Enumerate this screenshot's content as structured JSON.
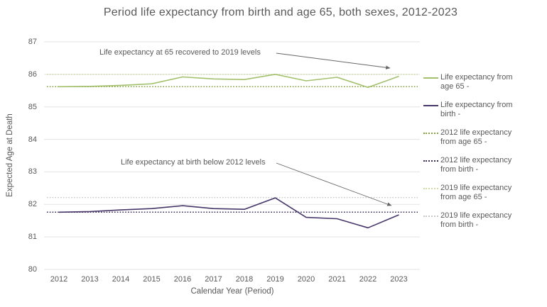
{
  "title": "Period life expectancy from birth and age 65, both sexes, 2012-2023",
  "colors": {
    "text": "#595959",
    "grid": "#e3e3e3",
    "arrow": "#666666",
    "background": "#ffffff"
  },
  "chart_data": {
    "type": "line",
    "title": "Period life expectancy from birth and age 65, both sexes, 2012-2023",
    "xlabel": "Calendar Year (Period)",
    "ylabel": "Expected Age at Death",
    "ylim": [
      80,
      87
    ],
    "yticks": [
      87,
      86,
      85,
      84,
      83,
      82,
      81,
      80
    ],
    "grid": "horizontal",
    "legend_position": "right",
    "categories": [
      "2012",
      "2013",
      "2014",
      "2015",
      "2016",
      "2017",
      "2018",
      "2019",
      "2020",
      "2021",
      "2022",
      "2023"
    ],
    "series": [
      {
        "id": "le-age65",
        "name": "Life expectancy from age 65 -",
        "label_lines": [
          "Life expectancy from",
          "age 65 -"
        ],
        "kind": "line",
        "style": "solid",
        "color": "#a3c06c",
        "values": [
          85.62,
          85.63,
          85.66,
          85.71,
          85.92,
          85.86,
          85.84,
          86.0,
          85.8,
          85.91,
          85.6,
          85.94
        ]
      },
      {
        "id": "le-birth",
        "name": "Life expectancy from birth -",
        "label_lines": [
          "Life expectancy from",
          "birth -"
        ],
        "kind": "line",
        "style": "solid",
        "color": "#473669",
        "values": [
          81.76,
          81.78,
          81.83,
          81.87,
          81.96,
          81.87,
          81.85,
          82.2,
          81.6,
          81.56,
          81.28,
          81.68
        ]
      },
      {
        "id": "ref-2012-age65",
        "name": "2012 life expectancy from age 65 -",
        "label_lines": [
          "2012 life expectancy",
          "from age 65 -"
        ],
        "kind": "refline",
        "style": "dotted",
        "color": "#84a040",
        "value": 85.62
      },
      {
        "id": "ref-2012-birth",
        "name": "2012 life expectancy from birth -",
        "label_lines": [
          "2012 life expectancy",
          "from birth -"
        ],
        "kind": "refline",
        "style": "dotted",
        "color": "#372a56",
        "value": 81.76
      },
      {
        "id": "ref-2019-age65",
        "name": "2019 life expectancy from age 65 -",
        "label_lines": [
          "2019 life expectancy",
          "from age 65 -"
        ],
        "kind": "refline",
        "style": "dotted",
        "color": "#cedca5",
        "value": 86.0
      },
      {
        "id": "ref-2019-birth",
        "name": "2019 life expectancy from birth -",
        "label_lines": [
          "2019 life expectancy",
          "from birth -"
        ],
        "kind": "refline",
        "style": "dotted",
        "color": "#c8c8c8",
        "value": 82.21
      }
    ],
    "annotations": [
      {
        "id": "ann-age65",
        "text": "Life expectancy at 65 recovered to 2019 levels"
      },
      {
        "id": "ann-birth",
        "text": "Life expectancy at birth below 2012 levels"
      }
    ]
  }
}
